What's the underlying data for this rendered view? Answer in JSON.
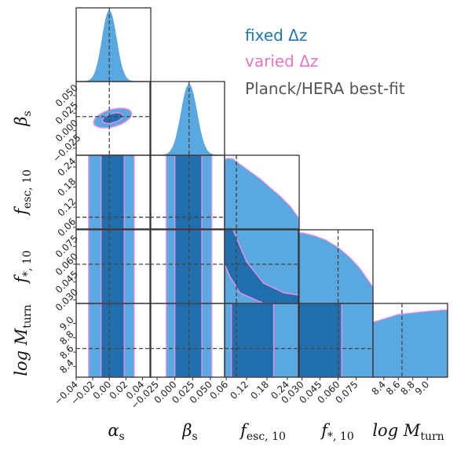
{
  "chart_data": {
    "type": "corner",
    "parameters": [
      {
        "symbol": "α",
        "sub": "s",
        "label": "α_s",
        "range": [
          -0.04,
          0.05
        ],
        "ticks": [
          "−0.04",
          "−0.02",
          "0.00",
          "0.02",
          "0.04"
        ],
        "tick_values": [
          -0.04,
          -0.02,
          0.0,
          0.02,
          0.04
        ],
        "best_fit": 0.0
      },
      {
        "symbol": "β",
        "sub": "s",
        "label": "β_s",
        "range": [
          -0.035,
          0.07
        ],
        "ticks": [
          "−0.025",
          "0.000",
          "0.025",
          "0.050"
        ],
        "tick_values": [
          -0.025,
          0.0,
          0.025,
          0.05
        ],
        "best_fit": 0.02
      },
      {
        "symbol": "f",
        "sub": "esc, 10",
        "label": "f_esc,10",
        "range": [
          0.055,
          0.275
        ],
        "ticks": [
          "0.06",
          "0.12",
          "0.18",
          "0.24"
        ],
        "tick_values": [
          0.06,
          0.12,
          0.18,
          0.24
        ],
        "best_fit": 0.09
      },
      {
        "symbol": "f",
        "sub": "*, 10",
        "label": "f_*,10",
        "range": [
          0.027,
          0.089
        ],
        "ticks": [
          "0.030",
          "0.045",
          "0.060",
          "0.075"
        ],
        "tick_values": [
          0.03,
          0.045,
          0.06,
          0.075
        ],
        "best_fit": 0.06
      },
      {
        "symbol": "log M",
        "sub": "turn",
        "label": "log M_turn",
        "range": [
          8.25,
          9.28
        ],
        "ticks": [
          "8.4",
          "8.6",
          "8.8",
          "9.0"
        ],
        "tick_values": [
          8.4,
          8.6,
          8.8,
          9.0
        ],
        "best_fit": 8.65
      }
    ],
    "series": [
      {
        "name": "fixed Δz",
        "color": "#1f77b4"
      },
      {
        "name": "varied Δz",
        "color": "#e377c2"
      },
      {
        "name": "Planck/HERA best-fit",
        "color": "#555555"
      }
    ],
    "colors": {
      "fill_68": "#1f6fae",
      "fill_95": "#5aa8e0",
      "varied_line": "#ee8de6",
      "bestfit_line": "#444444"
    },
    "legend": {
      "items": [
        {
          "text": "fixed Δz",
          "color": "#1f77b4"
        },
        {
          "text": "varied Δz",
          "color": "#e377c2"
        },
        {
          "text": "Planck/HERA best-fit",
          "color": "#555555"
        }
      ],
      "placement": "top-right"
    },
    "grid": false
  }
}
